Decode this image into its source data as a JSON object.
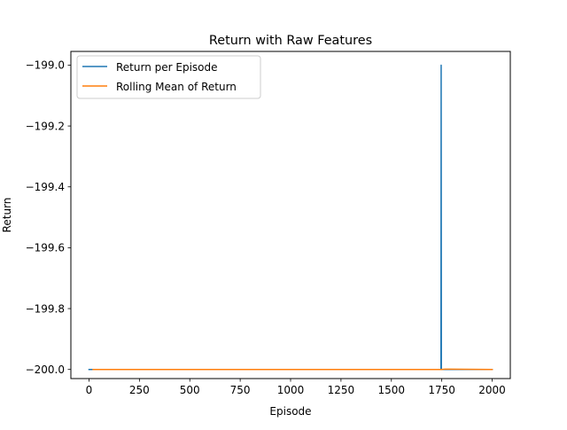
{
  "chart_data": {
    "type": "line",
    "title": "Return with Raw Features",
    "xlabel": "Episode",
    "ylabel": "Return",
    "xlim": [
      -90,
      2090
    ],
    "ylim": [
      -200.03,
      -198.955
    ],
    "xticks": [
      0,
      250,
      500,
      750,
      1000,
      1250,
      1500,
      1750,
      2000
    ],
    "xtick_labels": [
      "0",
      "250",
      "500",
      "750",
      "1000",
      "1250",
      "1500",
      "1750",
      "2000"
    ],
    "yticks": [
      -200.0,
      -199.8,
      -199.6,
      -199.4,
      -199.2,
      -199.0
    ],
    "ytick_labels": [
      "−200.0",
      "−199.8",
      "−199.6",
      "−199.4",
      "−199.2",
      "−199.0"
    ],
    "grid": false,
    "legend_position": "upper left",
    "series": [
      {
        "name": "Return per Episode",
        "color": "#1f77b4",
        "x": [
          0,
          1746,
          1747,
          1748,
          2000
        ],
        "y": [
          -200.0,
          -200.0,
          -199.0,
          -200.0,
          -200.0
        ]
      },
      {
        "name": "Rolling Mean of Return",
        "color": "#ff7f0e",
        "x": [
          20,
          1746,
          1766,
          2000
        ],
        "y": [
          -200.0,
          -200.0,
          -199.999,
          -200.0
        ]
      }
    ]
  }
}
